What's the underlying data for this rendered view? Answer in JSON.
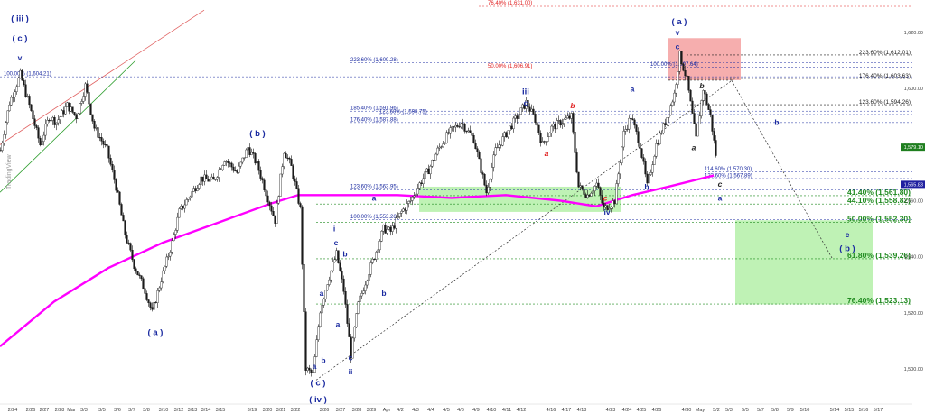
{
  "chart_data": {
    "type": "candlestick",
    "title": "",
    "y_axis": {
      "range": [
        1490,
        1630
      ],
      "ticks": [
        "1,500.00",
        "1,520.00",
        "1,540.00",
        "1,560.00",
        "1,580.00",
        "1,600.00",
        "1,620.00"
      ],
      "tick_values": [
        1500,
        1520,
        1540,
        1560,
        1580,
        1600,
        1620
      ],
      "position": "right"
    },
    "x_axis": {
      "tick_labels": [
        "2/24",
        "2/26",
        "2/27",
        "2/28",
        "Mar",
        "3/3",
        "3/5",
        "3/6",
        "3/7",
        "3/8",
        "3/10",
        "3/12",
        "3/13",
        "3/14",
        "3/15",
        "3/19",
        "3/20",
        "3/21",
        "3/22",
        "3/26",
        "3/27",
        "3/28",
        "3/29",
        "Apr",
        "4/2",
        "4/3",
        "4/4",
        "4/5",
        "4/6",
        "4/9",
        "4/10",
        "4/11",
        "4/12",
        "4/16",
        "4/17",
        "4/18",
        "4/23",
        "4/24",
        "4/25",
        "4/26",
        "4/30",
        "May",
        "5/2",
        "5/3",
        "5/5",
        "5/7",
        "5/8",
        "5/9",
        "5/10",
        "5/14",
        "5/15",
        "5/16",
        "5/17"
      ]
    },
    "price_path": [
      [
        0,
        1578
      ],
      [
        10,
        1595
      ],
      [
        22,
        1605
      ],
      [
        32,
        1594
      ],
      [
        44,
        1580
      ],
      [
        54,
        1590
      ],
      [
        62,
        1588
      ],
      [
        74,
        1594
      ],
      [
        84,
        1590
      ],
      [
        94,
        1601
      ],
      [
        104,
        1586
      ],
      [
        118,
        1578
      ],
      [
        128,
        1565
      ],
      [
        138,
        1548
      ],
      [
        148,
        1537
      ],
      [
        160,
        1528
      ],
      [
        168,
        1520
      ],
      [
        178,
        1532
      ],
      [
        190,
        1545
      ],
      [
        198,
        1556
      ],
      [
        210,
        1562
      ],
      [
        222,
        1568
      ],
      [
        236,
        1567
      ],
      [
        248,
        1575
      ],
      [
        262,
        1570
      ],
      [
        274,
        1579
      ],
      [
        284,
        1573
      ],
      [
        294,
        1563
      ],
      [
        304,
        1553
      ],
      [
        314,
        1578
      ],
      [
        322,
        1572
      ],
      [
        332,
        1557
      ],
      [
        338,
        1500
      ],
      [
        346,
        1498
      ],
      [
        354,
        1521
      ],
      [
        362,
        1531
      ],
      [
        372,
        1541
      ],
      [
        380,
        1528
      ],
      [
        388,
        1505
      ],
      [
        396,
        1523
      ],
      [
        406,
        1533
      ],
      [
        416,
        1542
      ],
      [
        424,
        1550
      ],
      [
        432,
        1549
      ],
      [
        444,
        1556
      ],
      [
        454,
        1560
      ],
      [
        464,
        1566
      ],
      [
        474,
        1571
      ],
      [
        484,
        1578
      ],
      [
        496,
        1584
      ],
      [
        510,
        1588
      ],
      [
        524,
        1582
      ],
      [
        538,
        1563
      ],
      [
        548,
        1578
      ],
      [
        560,
        1584
      ],
      [
        572,
        1590
      ],
      [
        582,
        1595
      ],
      [
        592,
        1589
      ],
      [
        600,
        1580
      ],
      [
        610,
        1586
      ],
      [
        620,
        1588
      ],
      [
        632,
        1590
      ],
      [
        640,
        1565
      ],
      [
        650,
        1562
      ],
      [
        660,
        1566
      ],
      [
        668,
        1557
      ],
      [
        680,
        1560
      ],
      [
        690,
        1584
      ],
      [
        698,
        1590
      ],
      [
        708,
        1580
      ],
      [
        716,
        1565
      ],
      [
        726,
        1580
      ],
      [
        736,
        1588
      ],
      [
        746,
        1598
      ],
      [
        752,
        1612
      ],
      [
        760,
        1603
      ],
      [
        770,
        1582
      ],
      [
        778,
        1600
      ],
      [
        786,
        1590
      ],
      [
        794,
        1572
      ]
    ],
    "moving_average": {
      "color": "#ff00ff",
      "path": [
        [
          0,
          1508
        ],
        [
          60,
          1524
        ],
        [
          120,
          1536
        ],
        [
          180,
          1545
        ],
        [
          240,
          1552
        ],
        [
          300,
          1559
        ],
        [
          330,
          1562
        ],
        [
          380,
          1562
        ],
        [
          440,
          1562
        ],
        [
          500,
          1561
        ],
        [
          560,
          1562
        ],
        [
          620,
          1560
        ],
        [
          660,
          1558
        ],
        [
          700,
          1562
        ],
        [
          740,
          1565
        ],
        [
          790,
          1569
        ]
      ]
    },
    "last_price": {
      "value": "1,579.10",
      "color": "#1f7f1f"
    },
    "ma_value": {
      "value": "1,565.83",
      "color": "#2020a0"
    },
    "top_value": {
      "value": "76.40% (1,631.00)",
      "color": "#e02020"
    },
    "fib_right": [
      {
        "text": "223.60% (1,612.01)",
        "value": 1612.01,
        "color": "#202020"
      },
      {
        "text": "176.40% (1,603.63)",
        "value": 1603.63,
        "color": "#202020"
      },
      {
        "text": "123.60% (1,594.26)",
        "value": 1594.26,
        "color": "#202020"
      },
      {
        "text": "41.40% (1,561.80)",
        "value": 1561.8,
        "color": "#1f8a1f"
      },
      {
        "text": "44.10% (1,558.82)",
        "value": 1558.82,
        "color": "#1f8a1f"
      },
      {
        "text": "50.00% (1,552.30)",
        "value": 1552.3,
        "color": "#1f8a1f"
      },
      {
        "text": "61.80% (1,539.26)",
        "value": 1539.26,
        "color": "#1f8a1f"
      },
      {
        "text": "76.40% (1,523.13)",
        "value": 1523.13,
        "color": "#1f8a1f"
      }
    ],
    "fib_inner": [
      {
        "text": "223.60% (1,609.28)",
        "value": 1609.28,
        "color": "#1a2aa0",
        "x": 388
      },
      {
        "text": "50.00% (1,606.91)",
        "value": 1606.91,
        "color": "#e02020",
        "x": 540
      },
      {
        "text": "100.00% (1,607.64)",
        "value": 1607.64,
        "color": "#1a2aa0",
        "x": 720
      },
      {
        "text": "100.00% (1,604.21)",
        "value": 1604.21,
        "color": "#1a2aa0",
        "x": 4
      },
      {
        "text": "185.40% (1,591.96)",
        "value": 1591.96,
        "color": "#1a2aa0",
        "x": 388
      },
      {
        "text": "123.60% (1,590.75)",
        "value": 1590.75,
        "color": "#1a2aa0",
        "x": 420
      },
      {
        "text": "176.40% (1,587.88)",
        "value": 1587.88,
        "color": "#1a2aa0",
        "x": 388
      },
      {
        "text": "123.60% (1,563.95)",
        "value": 1563.95,
        "color": "#1a2aa0",
        "x": 388
      },
      {
        "text": "100.00% (1,553.26)",
        "value": 1553.26,
        "color": "#1a2aa0",
        "x": 388
      },
      {
        "text": "114.60% (1,570.30)",
        "value": 1570.3,
        "color": "#1a2aa0",
        "x": 780
      },
      {
        "text": "123.60% (1,567.89)",
        "value": 1567.89,
        "color": "#1a2aa0",
        "x": 780
      }
    ],
    "wave_labels": [
      {
        "text": "( iii )",
        "x": 22,
        "y": 1624,
        "color": "#1a2aa0"
      },
      {
        "text": "( c )",
        "x": 22,
        "y": 1617,
        "color": "#1a2aa0"
      },
      {
        "text": "v",
        "x": 22,
        "y": 1610,
        "color": "#1a2aa0"
      },
      {
        "text": "( a )",
        "x": 172,
        "y": 1512,
        "color": "#1a2aa0"
      },
      {
        "text": "( b )",
        "x": 285,
        "y": 1583,
        "color": "#1a2aa0"
      },
      {
        "text": "( c )",
        "x": 352,
        "y": 1494,
        "color": "#1a2aa0"
      },
      {
        "text": "( iv )",
        "x": 352,
        "y": 1488,
        "color": "#1a2aa0"
      },
      {
        "text": "a",
        "x": 356,
        "y": 1526,
        "color": "#1a2aa0"
      },
      {
        "text": "a",
        "x": 348,
        "y": 1500,
        "color": "#1a2aa0"
      },
      {
        "text": "b",
        "x": 358,
        "y": 1502,
        "color": "#1a2aa0"
      },
      {
        "text": "a",
        "x": 374,
        "y": 1515,
        "color": "#1a2aa0"
      },
      {
        "text": "i",
        "x": 370,
        "y": 1549,
        "color": "#1a2aa0"
      },
      {
        "text": "c",
        "x": 372,
        "y": 1544,
        "color": "#1a2aa0"
      },
      {
        "text": "b",
        "x": 382,
        "y": 1540,
        "color": "#1a2aa0"
      },
      {
        "text": "c",
        "x": 388,
        "y": 1503,
        "color": "#1a2aa0"
      },
      {
        "text": "ii",
        "x": 388,
        "y": 1498,
        "color": "#1a2aa0"
      },
      {
        "text": "a",
        "x": 414,
        "y": 1560,
        "color": "#1a2aa0"
      },
      {
        "text": "b",
        "x": 425,
        "y": 1526,
        "color": "#1a2aa0"
      },
      {
        "text": "iii",
        "x": 582,
        "y": 1598,
        "color": "#1a2aa0"
      },
      {
        "text": "c",
        "x": 582,
        "y": 1594,
        "color": "#1a2aa0"
      },
      {
        "text": "a",
        "x": 605,
        "y": 1576,
        "color": "#e02020"
      },
      {
        "text": "b",
        "x": 634,
        "y": 1593,
        "color": "#e02020"
      },
      {
        "text": "c",
        "x": 670,
        "y": 1560,
        "color": "#e02020"
      },
      {
        "text": "iv",
        "x": 672,
        "y": 1555,
        "color": "#1a2aa0"
      },
      {
        "text": "a",
        "x": 700,
        "y": 1599,
        "color": "#1a2aa0"
      },
      {
        "text": "b",
        "x": 716,
        "y": 1564,
        "color": "#1a2aa0"
      },
      {
        "text": "( a )",
        "x": 752,
        "y": 1623,
        "color": "#1a2aa0"
      },
      {
        "text": "v",
        "x": 750,
        "y": 1619,
        "color": "#1a2aa0"
      },
      {
        "text": "c",
        "x": 750,
        "y": 1614,
        "color": "#1a2aa0"
      },
      {
        "text": "a",
        "x": 768,
        "y": 1578,
        "color": "#202020"
      },
      {
        "text": "b",
        "x": 777,
        "y": 1600,
        "color": "#202020"
      },
      {
        "text": "c",
        "x": 797,
        "y": 1565,
        "color": "#202020"
      },
      {
        "text": "a",
        "x": 797,
        "y": 1560,
        "color": "#1a2aa0"
      },
      {
        "text": "b",
        "x": 860,
        "y": 1587,
        "color": "#1a2aa0"
      },
      {
        "text": "c",
        "x": 938,
        "y": 1547,
        "color": "#1a2aa0"
      },
      {
        "text": "( b )",
        "x": 938,
        "y": 1542,
        "color": "#1a2aa0"
      }
    ],
    "zones": [
      {
        "name": "green-support",
        "x0": 464,
        "x1": 688,
        "y0": 1565,
        "y1": 1556,
        "color": "#b4f0a8"
      },
      {
        "name": "red-resistance",
        "x0": 740,
        "x1": 820,
        "y0": 1618,
        "y1": 1603,
        "color": "#f4a0a0"
      },
      {
        "name": "green-target",
        "x0": 814,
        "x1": 966,
        "y0": 1553,
        "y1": 1523,
        "color": "#b4f0a8"
      }
    ],
    "watermark": "TradingView"
  }
}
